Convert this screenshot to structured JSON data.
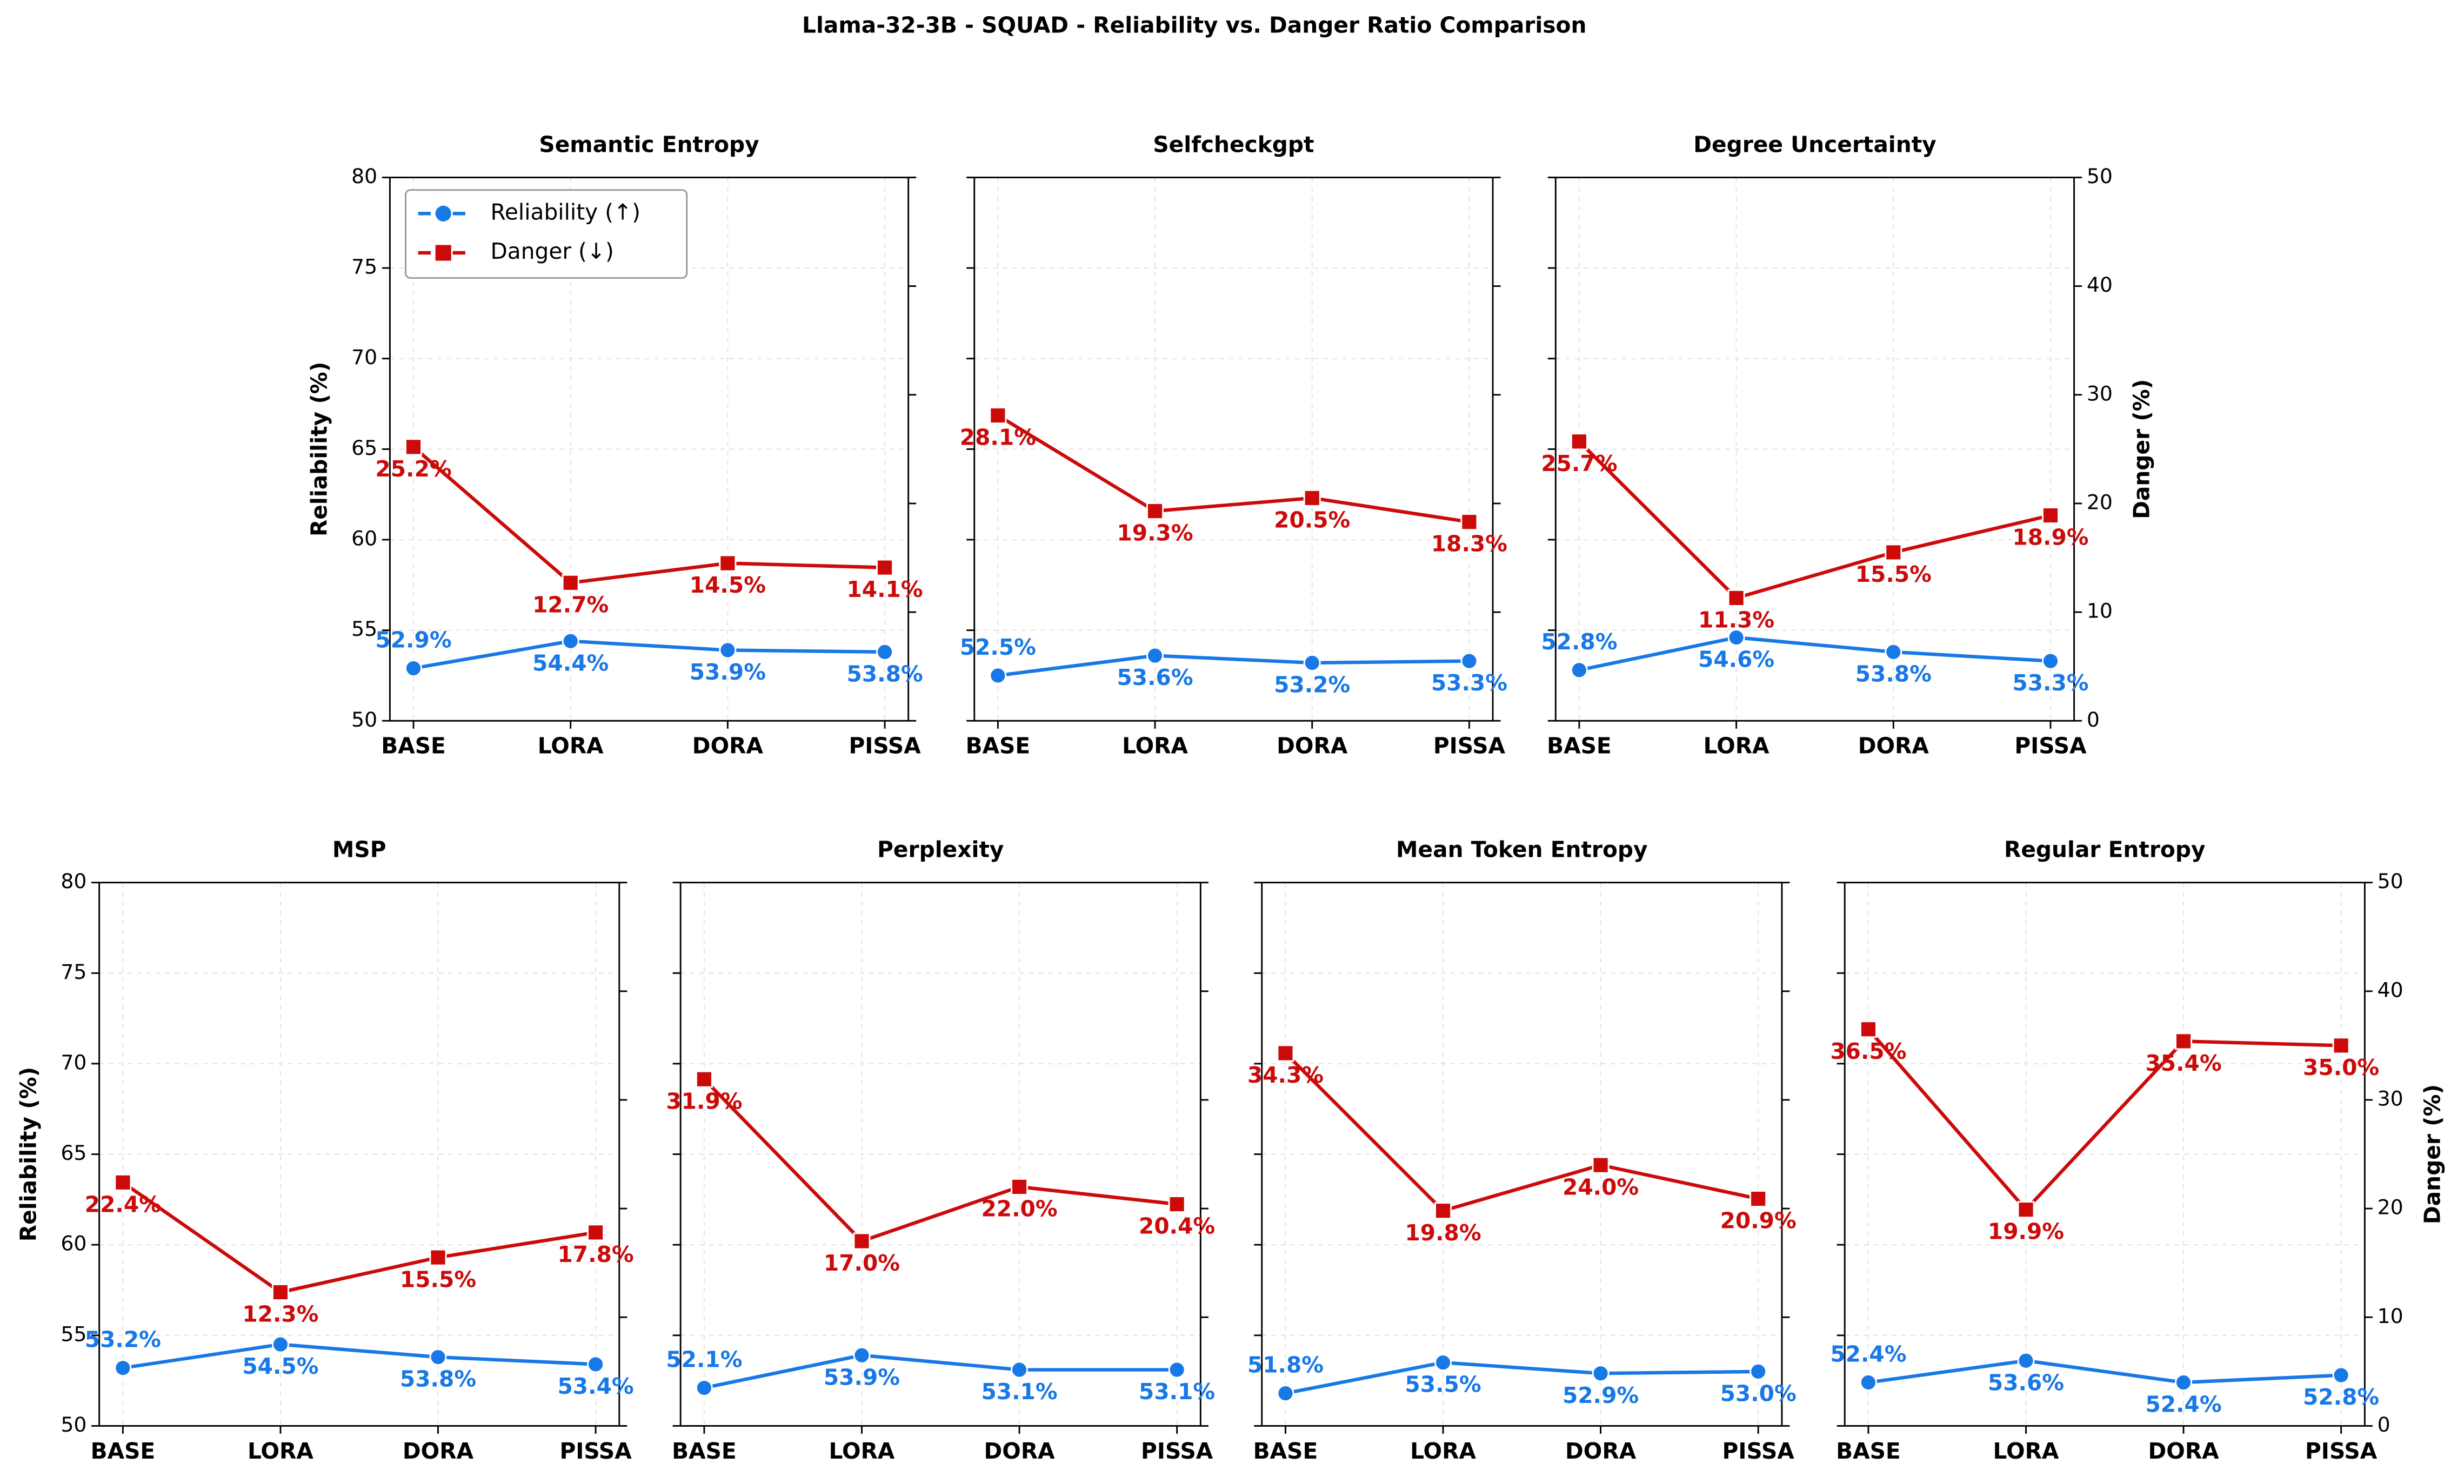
{
  "title": "Llama-32-3B - SQUAD - Reliability vs. Danger Ratio Comparison",
  "chart_data": [
    {
      "type": "line",
      "title": "Semantic Entropy",
      "categories": [
        "BASE",
        "LORA",
        "DORA",
        "PISSA"
      ],
      "ylabel": "Reliability (%)",
      "legend": "upper left",
      "series": [
        {
          "name": "Reliability (↑)",
          "color": "#1778e6",
          "values": [
            52.9,
            54.4,
            53.9,
            53.8
          ],
          "value_labels": [
            "52.9%",
            "54.4%",
            "53.9%",
            "53.8%"
          ]
        },
        {
          "name": "Danger (↓)",
          "color": "#cc0a0a",
          "axis": "y2",
          "values": [
            25.2,
            12.7,
            14.5,
            14.1
          ],
          "value_labels": [
            "25.2%",
            "12.7%",
            "14.5%",
            "14.1%"
          ]
        }
      ],
      "ylim": [
        50,
        80
      ],
      "yticks": [
        50,
        55,
        60,
        65,
        70,
        75,
        80
      ],
      "y2lim": [
        0,
        50
      ],
      "y2ticks": [
        0,
        10,
        20,
        30,
        40,
        50
      ],
      "grid": true
    },
    {
      "type": "line",
      "title": "Selfcheckgpt",
      "categories": [
        "BASE",
        "LORA",
        "DORA",
        "PISSA"
      ],
      "series": [
        {
          "color": "#1778e6",
          "values": [
            52.5,
            53.6,
            53.2,
            53.3
          ],
          "value_labels": [
            "52.5%",
            "53.6%",
            "53.2%",
            "53.3%"
          ]
        },
        {
          "color": "#cc0a0a",
          "axis": "y2",
          "values": [
            28.1,
            19.3,
            20.5,
            18.3
          ],
          "value_labels": [
            "28.1%",
            "19.3%",
            "20.5%",
            "18.3%"
          ]
        }
      ],
      "ylim": [
        50,
        80
      ],
      "yticks": [
        50,
        55,
        60,
        65,
        70,
        75,
        80
      ],
      "y2lim": [
        0,
        50
      ],
      "y2ticks": [
        0,
        10,
        20,
        30,
        40,
        50
      ],
      "grid": true
    },
    {
      "type": "line",
      "title": "Degree Uncertainty",
      "categories": [
        "BASE",
        "LORA",
        "DORA",
        "PISSA"
      ],
      "y2label": "Danger (%)",
      "series": [
        {
          "color": "#1778e6",
          "values": [
            52.8,
            54.6,
            53.8,
            53.3
          ],
          "value_labels": [
            "52.8%",
            "54.6%",
            "53.8%",
            "53.3%"
          ]
        },
        {
          "color": "#cc0a0a",
          "axis": "y2",
          "values": [
            25.7,
            11.3,
            15.5,
            18.9
          ],
          "value_labels": [
            "25.7%",
            "11.3%",
            "15.5%",
            "18.9%"
          ]
        }
      ],
      "ylim": [
        50,
        80
      ],
      "yticks": [
        50,
        55,
        60,
        65,
        70,
        75,
        80
      ],
      "y2lim": [
        0,
        50
      ],
      "y2ticks": [
        0,
        10,
        20,
        30,
        40,
        50
      ],
      "grid": true
    },
    {
      "type": "line",
      "title": "MSP",
      "categories": [
        "BASE",
        "LORA",
        "DORA",
        "PISSA"
      ],
      "ylabel": "Reliability (%)",
      "series": [
        {
          "color": "#1778e6",
          "values": [
            53.2,
            54.5,
            53.8,
            53.4
          ],
          "value_labels": [
            "53.2%",
            "54.5%",
            "53.8%",
            "53.4%"
          ]
        },
        {
          "color": "#cc0a0a",
          "axis": "y2",
          "values": [
            22.4,
            12.3,
            15.5,
            17.8
          ],
          "value_labels": [
            "22.4%",
            "12.3%",
            "15.5%",
            "17.8%"
          ]
        }
      ],
      "ylim": [
        50,
        80
      ],
      "yticks": [
        50,
        55,
        60,
        65,
        70,
        75,
        80
      ],
      "y2lim": [
        0,
        50
      ],
      "y2ticks": [
        0,
        10,
        20,
        30,
        40,
        50
      ],
      "grid": true
    },
    {
      "type": "line",
      "title": "Perplexity",
      "categories": [
        "BASE",
        "LORA",
        "DORA",
        "PISSA"
      ],
      "series": [
        {
          "color": "#1778e6",
          "values": [
            52.1,
            53.9,
            53.1,
            53.1
          ],
          "value_labels": [
            "52.1%",
            "53.9%",
            "53.1%",
            "53.1%"
          ]
        },
        {
          "color": "#cc0a0a",
          "axis": "y2",
          "values": [
            31.9,
            17.0,
            22.0,
            20.4
          ],
          "value_labels": [
            "31.9%",
            "17.0%",
            "22.0%",
            "20.4%"
          ]
        }
      ],
      "ylim": [
        50,
        80
      ],
      "yticks": [
        50,
        55,
        60,
        65,
        70,
        75,
        80
      ],
      "y2lim": [
        0,
        50
      ],
      "y2ticks": [
        0,
        10,
        20,
        30,
        40,
        50
      ],
      "grid": true
    },
    {
      "type": "line",
      "title": "Mean Token Entropy",
      "categories": [
        "BASE",
        "LORA",
        "DORA",
        "PISSA"
      ],
      "series": [
        {
          "color": "#1778e6",
          "values": [
            51.8,
            53.5,
            52.9,
            53.0
          ],
          "value_labels": [
            "51.8%",
            "53.5%",
            "52.9%",
            "53.0%"
          ]
        },
        {
          "color": "#cc0a0a",
          "axis": "y2",
          "values": [
            34.3,
            19.8,
            24.0,
            20.9
          ],
          "value_labels": [
            "34.3%",
            "19.8%",
            "24.0%",
            "20.9%"
          ]
        }
      ],
      "ylim": [
        50,
        80
      ],
      "yticks": [
        50,
        55,
        60,
        65,
        70,
        75,
        80
      ],
      "y2lim": [
        0,
        50
      ],
      "y2ticks": [
        0,
        10,
        20,
        30,
        40,
        50
      ],
      "grid": true
    },
    {
      "type": "line",
      "title": "Regular Entropy",
      "categories": [
        "BASE",
        "LORA",
        "DORA",
        "PISSA"
      ],
      "y2label": "Danger (%)",
      "series": [
        {
          "color": "#1778e6",
          "values": [
            52.4,
            53.6,
            52.4,
            52.8
          ],
          "value_labels": [
            "52.4%",
            "53.6%",
            "52.4%",
            "52.8%"
          ]
        },
        {
          "color": "#cc0a0a",
          "axis": "y2",
          "values": [
            36.5,
            19.9,
            35.4,
            35.0
          ],
          "value_labels": [
            "36.5%",
            "19.9%",
            "35.4%",
            "35.0%"
          ]
        }
      ],
      "ylim": [
        50,
        80
      ],
      "yticks": [
        50,
        55,
        60,
        65,
        70,
        75,
        80
      ],
      "y2lim": [
        0,
        50
      ],
      "y2ticks": [
        0,
        10,
        20,
        30,
        40,
        50
      ],
      "grid": true
    }
  ]
}
